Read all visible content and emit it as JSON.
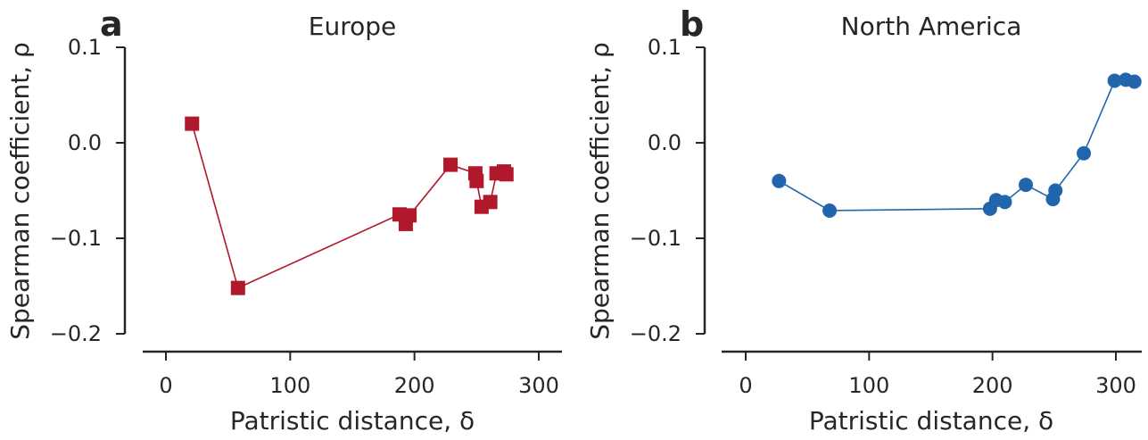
{
  "colors": {
    "europe": "#b2182b",
    "north_america": "#2166ac",
    "axes": "#262626"
  },
  "chart_data": [
    {
      "panel_letter": "a",
      "title": "Europe",
      "type": "line",
      "marker": "square",
      "color": "#b2182b",
      "xlabel": "Patristic distance, δ",
      "ylabel": "Spearman coefficient, ρ",
      "xlim": [
        -20,
        320
      ],
      "ylim": [
        -0.2,
        0.1
      ],
      "xticks": [
        0,
        100,
        200,
        300
      ],
      "xtick_labels": [
        "0",
        "100",
        "200",
        "300"
      ],
      "yticks": [
        -0.2,
        -0.1,
        0.0,
        0.1
      ],
      "ytick_labels": [
        "−0.2",
        "−0.1",
        "0.0",
        "0.1"
      ],
      "grid": false,
      "series": [
        {
          "x": [
            21,
            58,
            188,
            193,
            196,
            229,
            249,
            250,
            254,
            261,
            266,
            272,
            274
          ],
          "y": [
            0.02,
            -0.152,
            -0.075,
            -0.085,
            -0.076,
            -0.023,
            -0.032,
            -0.04,
            -0.067,
            -0.062,
            -0.032,
            -0.03,
            -0.033
          ]
        }
      ]
    },
    {
      "panel_letter": "b",
      "title": "North America",
      "type": "line",
      "marker": "circle",
      "color": "#2166ac",
      "xlabel": "Patristic distance, δ",
      "ylabel": "Spearman coefficient, ρ",
      "xlim": [
        -20,
        320
      ],
      "ylim": [
        -0.2,
        0.1
      ],
      "xticks": [
        0,
        100,
        200,
        300
      ],
      "xtick_labels": [
        "0",
        "100",
        "200",
        "300"
      ],
      "yticks": [
        -0.2,
        -0.1,
        0.0,
        0.1
      ],
      "ytick_labels": [
        "−0.2",
        "−0.1",
        "0.0",
        "0.1"
      ],
      "grid": false,
      "series": [
        {
          "x": [
            27,
            68,
            198,
            203,
            210,
            227,
            249,
            251,
            274,
            299,
            308,
            315
          ],
          "y": [
            -0.04,
            -0.071,
            -0.069,
            -0.06,
            -0.062,
            -0.044,
            -0.059,
            -0.05,
            -0.011,
            0.065,
            0.066,
            0.064
          ]
        }
      ]
    }
  ]
}
